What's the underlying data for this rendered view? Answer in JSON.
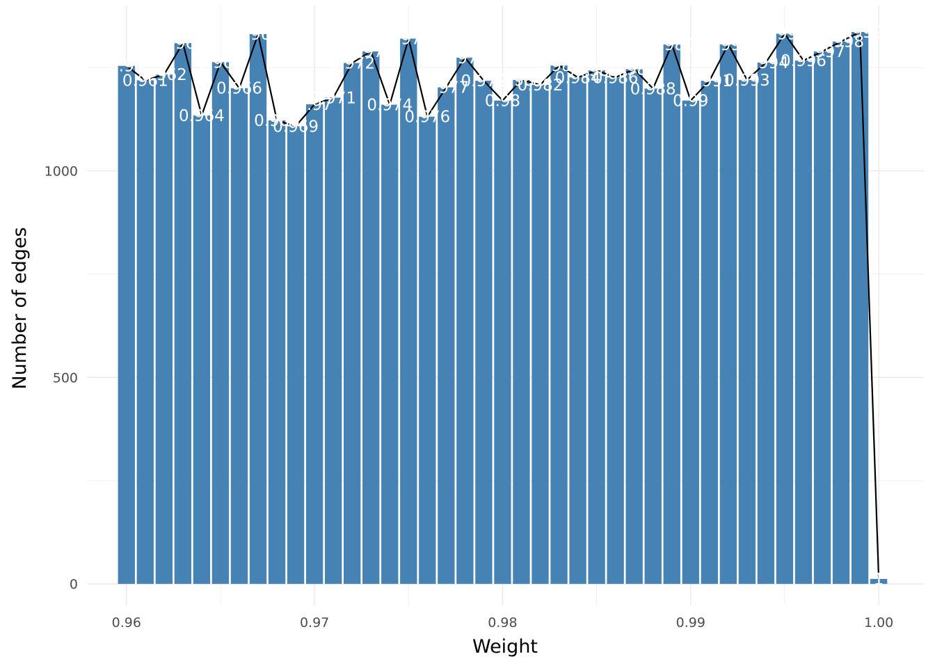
{
  "chart_data": {
    "type": "bar",
    "title": "",
    "xlabel": "Weight",
    "ylabel": "Number of edges",
    "x": [
      0.96,
      0.961,
      0.962,
      0.963,
      0.964,
      0.965,
      0.966,
      0.967,
      0.968,
      0.969,
      0.97,
      0.971,
      0.972,
      0.973,
      0.974,
      0.975,
      0.976,
      0.977,
      0.978,
      0.979,
      0.98,
      0.981,
      0.982,
      0.983,
      0.984,
      0.985,
      0.986,
      0.987,
      0.988,
      0.989,
      0.99,
      0.991,
      0.992,
      0.993,
      0.994,
      0.995,
      0.996,
      0.997,
      0.998,
      0.999,
      1.0
    ],
    "labels": [
      "0.96",
      "0.961",
      "0.962",
      "0.963",
      "0.964",
      "0.965",
      "0.966",
      "0.967",
      "0.968",
      "0.969",
      "0.97",
      "0.971",
      "0.972",
      "0.973",
      "0.974",
      "0.975",
      "0.976",
      "0.977",
      "0.978",
      "0.979",
      "0.98",
      "0.981",
      "0.982",
      "0.983",
      "0.984",
      "0.985",
      "0.986",
      "0.987",
      "0.988",
      "0.989",
      "0.99",
      "0.991",
      "0.992",
      "0.993",
      "0.994",
      "0.995",
      "0.996",
      "0.997",
      "0.998",
      "0.999",
      "1"
    ],
    "values": [
      1254,
      1219,
      1233,
      1309,
      1134,
      1263,
      1200,
      1331,
      1122,
      1108,
      1161,
      1177,
      1261,
      1289,
      1160,
      1320,
      1131,
      1202,
      1274,
      1218,
      1170,
      1220,
      1208,
      1255,
      1226,
      1243,
      1226,
      1246,
      1199,
      1306,
      1170,
      1218,
      1306,
      1220,
      1262,
      1332,
      1267,
      1289,
      1313,
      1336,
      12
    ],
    "line_values": [
      1254,
      1219,
      1233,
      1309,
      1134,
      1263,
      1200,
      1331,
      1122,
      1108,
      1161,
      1177,
      1261,
      1289,
      1160,
      1320,
      1131,
      1202,
      1274,
      1218,
      1170,
      1220,
      1208,
      1255,
      1226,
      1243,
      1226,
      1246,
      1199,
      1306,
      1170,
      1218,
      1306,
      1220,
      1262,
      1332,
      1267,
      1289,
      1313,
      1336,
      12
    ],
    "xlim": [
      0.9579,
      1.0024
    ],
    "ylim": [
      -52,
      1400
    ],
    "x_ticks": [
      0.96,
      0.97,
      0.98,
      0.99,
      1.0
    ],
    "x_tick_labels": [
      "0.96",
      "0.97",
      "0.98",
      "0.99",
      "1.00"
    ],
    "y_ticks": [
      0,
      500,
      1000
    ],
    "y_tick_labels": [
      "0",
      "500",
      "1000"
    ],
    "grid": true,
    "legend": "none",
    "colors": {
      "bar": "#4682b4",
      "line": "#000000",
      "bar_label": "#ffffff",
      "grid": "#ebebeb"
    }
  }
}
